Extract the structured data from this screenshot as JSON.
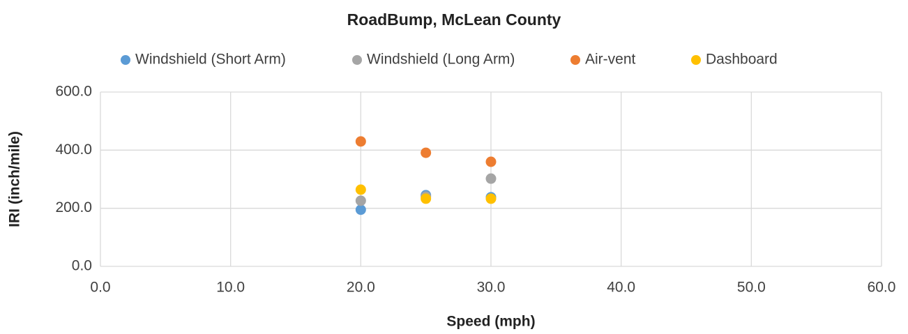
{
  "chart_data": {
    "type": "scatter",
    "title": "RoadBump, McLean County",
    "x_label": "Speed (mph)",
    "y_label": "IRI (inch/mile)",
    "x": [
      20,
      25,
      30
    ],
    "series": [
      {
        "name": "Windshield (Short Arm)",
        "color": "#5b9bd5",
        "values": [
          195,
          245,
          238
        ]
      },
      {
        "name": "Windshield (Long Arm)",
        "color": "#a5a5a5",
        "values": [
          226,
          240,
          302
        ]
      },
      {
        "name": "Air-vent",
        "color": "#ed7d31",
        "values": [
          430,
          391,
          360
        ]
      },
      {
        "name": "Dashboard",
        "color": "#ffc000",
        "values": [
          264,
          233,
          233
        ]
      }
    ],
    "xlim": [
      0,
      60
    ],
    "xticks": [
      {
        "value": 0,
        "label": "0.0"
      },
      {
        "value": 10,
        "label": "10.0"
      },
      {
        "value": 20,
        "label": "20.0"
      },
      {
        "value": 30,
        "label": "30.0"
      },
      {
        "value": 40,
        "label": "40.0"
      },
      {
        "value": 50,
        "label": "50.0"
      },
      {
        "value": 60,
        "label": "60.0"
      }
    ],
    "ylim": [
      0,
      600
    ],
    "yticks": [
      {
        "value": 0,
        "label": "0.0"
      },
      {
        "value": 200,
        "label": "200.0"
      },
      {
        "value": 400,
        "label": "400.0"
      },
      {
        "value": 600,
        "label": "600.0"
      }
    ],
    "grid": true,
    "legend": "top"
  }
}
